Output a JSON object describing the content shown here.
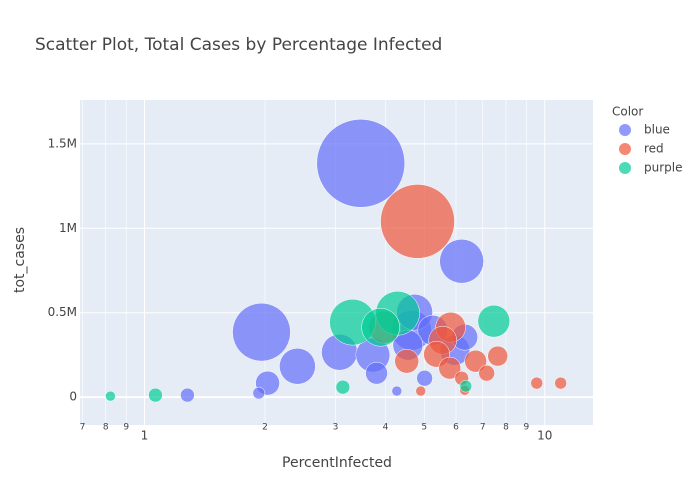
{
  "chart_data": {
    "type": "scatter",
    "title": "Scatter Plot, Total Cases by Percentage Infected",
    "x_label": "PercentInfected",
    "y_label": "tot_cases",
    "legend_title": "Color",
    "legend": "right",
    "grid": true,
    "xscale": "log",
    "xlim": [
      0.69,
      13.2
    ],
    "ylim": [
      -165000,
      1760000
    ],
    "xticks": [
      {
        "value": 0.7,
        "label": "7"
      },
      {
        "value": 0.8,
        "label": "8"
      },
      {
        "value": 0.9,
        "label": "9"
      },
      1,
      2,
      3,
      4,
      5,
      6,
      7,
      8,
      9,
      10
    ],
    "yticks": [
      0,
      {
        "value": 500000,
        "label": "0.5M"
      },
      {
        "value": 1000000,
        "label": "1M"
      },
      {
        "value": 1500000,
        "label": "1.5M"
      }
    ],
    "series": [
      {
        "name": "blue",
        "color": "#636efa",
        "x": [
          3.47,
          1.96,
          6.2,
          4.65,
          2.41,
          3.07,
          4.73,
          3.72,
          5.25,
          5.96,
          4.55,
          6.31,
          2.03,
          3.8,
          5.01,
          1.28,
          1.93,
          4.27
        ],
        "values": [
          1385000,
          385000,
          805000,
          396000,
          183000,
          266000,
          503000,
          249000,
          396000,
          278000,
          308000,
          355000,
          83000,
          142000,
          112000,
          12000,
          24000,
          36000
        ],
        "sizes": [
          77.44,
          33.64,
          19.36,
          16,
          12.96,
          12.96,
          12.96,
          11.56,
          9,
          9,
          9,
          6.76,
          5.76,
          4.84,
          2.56,
          1.96,
          1.44,
          1
        ]
      },
      {
        "name": "red",
        "color": "#EF553B",
        "x": [
          4.81,
          3.98,
          5.82,
          5.56,
          5.37,
          4.52,
          5.79,
          6.72,
          7.63,
          7.16,
          6.2,
          9.55,
          10.96,
          4.9,
          6.31
        ],
        "values": [
          1041000,
          414000,
          414000,
          337000,
          254000,
          213000,
          172000,
          213000,
          243000,
          142000,
          112000,
          83000,
          83000,
          36000,
          41000
        ],
        "sizes": [
          54.76,
          10.24,
          9,
          7.84,
          6.76,
          5.76,
          4.84,
          4.84,
          4,
          2.56,
          1.96,
          1.44,
          1.44,
          1,
          1
        ]
      },
      {
        "name": "purple",
        "color": "#00cc96",
        "x": [
          3.31,
          4.29,
          3.89,
          7.46,
          1.065,
          3.13,
          6.35,
          0.822
        ],
        "values": [
          444000,
          497000,
          414000,
          450000,
          12000,
          59000,
          65000,
          6000
        ],
        "sizes": [
          21.16,
          19.36,
          14.44,
          10.24,
          1.96,
          1.96,
          1.44,
          1
        ]
      }
    ]
  }
}
